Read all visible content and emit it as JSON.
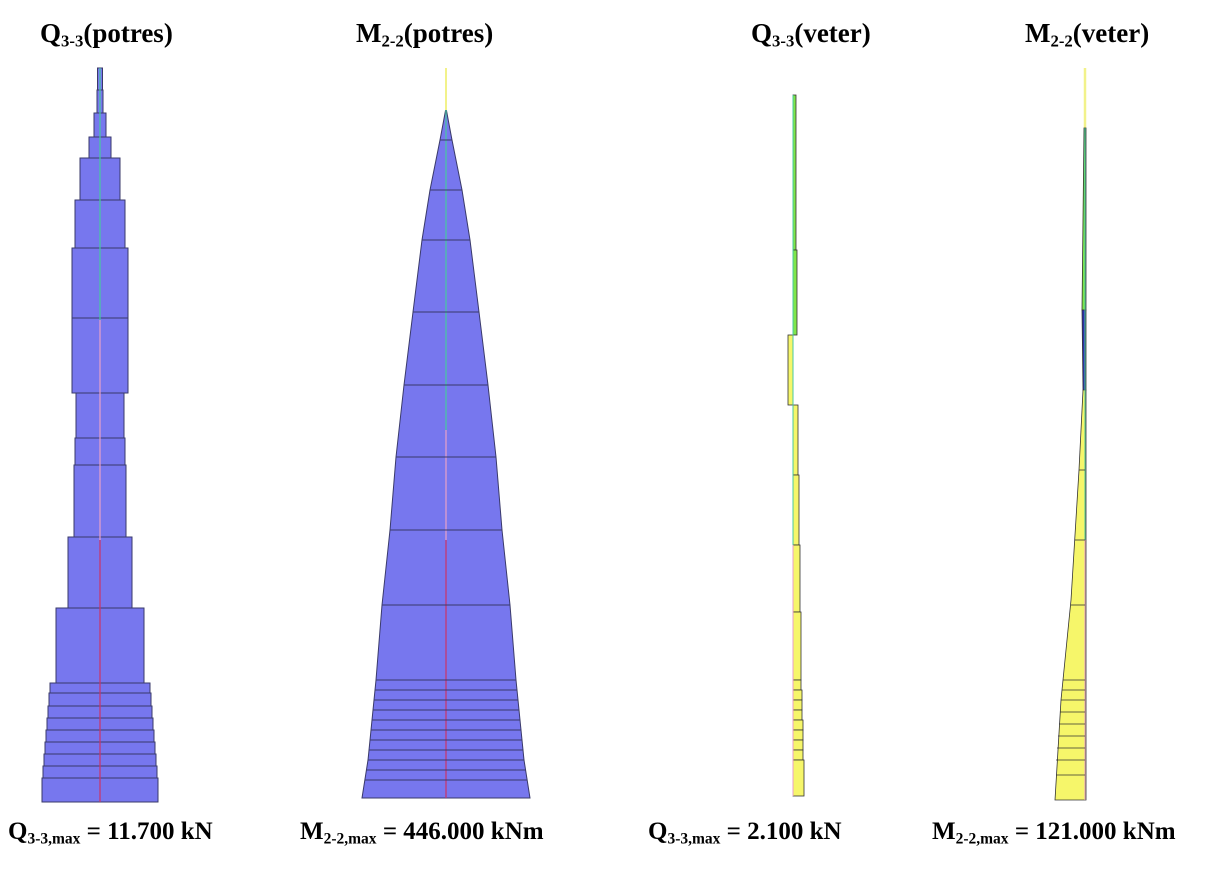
{
  "colors": {
    "fill_potres": "#7777EE",
    "edge_potres": "#3A3A6A",
    "fill_veter": "#F6F66A",
    "fill_veter_green": "#7FE64A",
    "fill_veter_blue": "#2E2EA8",
    "axis_yellow": "#F2F28A",
    "axis_green": "#48C8A0",
    "axis_pink": "#E8A0C8",
    "axis_red": "#CC3366"
  },
  "diagrams": [
    {
      "id": "q-potres",
      "title": {
        "sym": "Q",
        "sub": "3-3",
        "case": "(potres)"
      },
      "max": {
        "sym": "Q",
        "sub": "3-3,max",
        "text": " = 11.700 kN"
      },
      "value": 11.7,
      "unit": "kN"
    },
    {
      "id": "m-potres",
      "title": {
        "sym": "M",
        "sub": "2-2",
        "case": "(potres)"
      },
      "max": {
        "sym": "M",
        "sub": "2-2,max",
        "text": " = 446.000 kNm"
      },
      "value": 446.0,
      "unit": "kNm"
    },
    {
      "id": "q-veter",
      "title": {
        "sym": "Q",
        "sub": "3-3",
        "case": "(veter)"
      },
      "max": {
        "sym": "Q",
        "sub": "3-3,max",
        "text": " = 2.100 kN"
      },
      "value": 2.1,
      "unit": "kN"
    },
    {
      "id": "m-veter",
      "title": {
        "sym": "M",
        "sub": "2-2",
        "case": "(veter)"
      },
      "max": {
        "sym": "M",
        "sub": "2-2,max",
        "text": " = 121.000 kNm"
      },
      "value": 121.0,
      "unit": "kNm"
    }
  ]
}
